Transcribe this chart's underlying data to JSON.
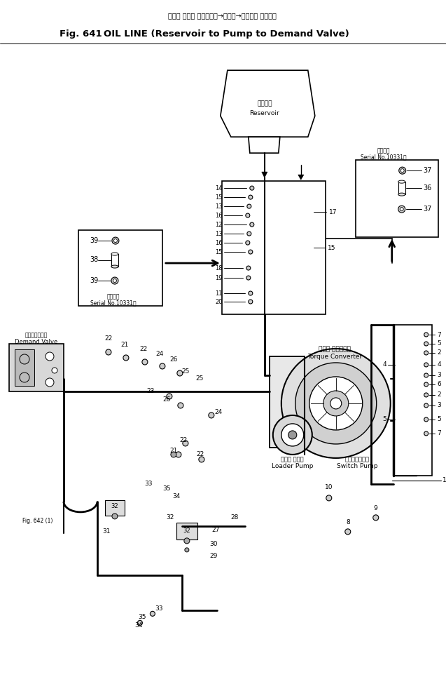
{
  "title_japanese": "オイル ライン （リザーバ→ポンプ→デマンド バルブ）",
  "title_english": "OIL LINE (Reservoir to Pump to Demand Valve)",
  "fig_number": "Fig. 641",
  "background_color": "#ffffff",
  "line_color": "#000000",
  "text_color": "#000000",
  "reservoir_label_jp": "リザーバ",
  "reservoir_label_en": "Reservoir",
  "torque_jp": "トルク コンバータ",
  "torque_en": "Torque Converter",
  "loader_jp": "ローダ ポンプ",
  "loader_en": "Loader Pump",
  "switch_jp": "スイッチポンプ",
  "switch_en": "Switch Pump",
  "demand_jp": "デマントバルブ",
  "demand_en": "Demand Valve",
  "serial_jp": "適用号艦",
  "serial_en": "Serial No.10331～",
  "fig642": "Fig. 642 (1)"
}
